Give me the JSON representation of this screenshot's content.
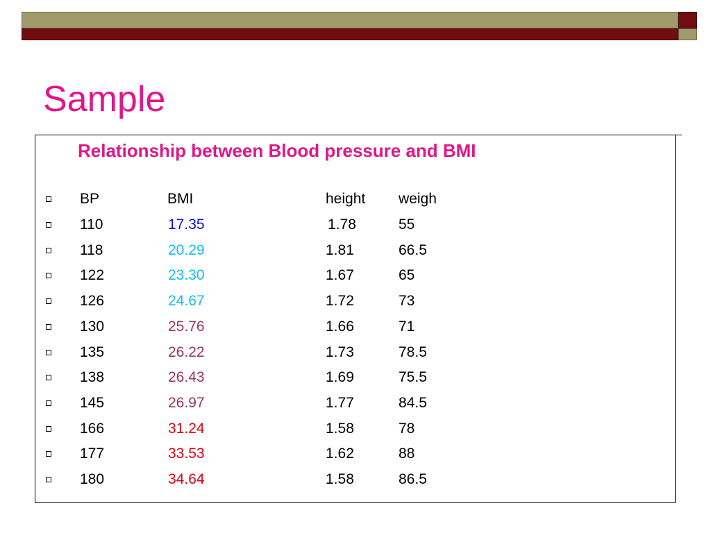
{
  "colors": {
    "title": "#e0168a",
    "bmi_low": "#0b10c8",
    "bmi_normal": "#10c0ee",
    "bmi_over": "#993366",
    "bmi_obese": "#e00010"
  },
  "title": "Sample",
  "subtitle": "Relationship between Blood pressure and BMI",
  "table": {
    "bullet_icon": "hollow-square-bullet",
    "headers": [
      "BP",
      "BMI",
      "height",
      "weigh"
    ],
    "rows": [
      {
        "bp": "110",
        "bmi": "17.35",
        "height": "1.78",
        "weight": "55",
        "bmi_color": "#0b10c8"
      },
      {
        "bp": "118",
        "bmi": "20.29",
        "height": "1.81",
        "weight": "66.5",
        "bmi_color": "#10c0ee"
      },
      {
        "bp": "122",
        "bmi": "23.30",
        "height": "1.67",
        "weight": "65",
        "bmi_color": "#10c0ee"
      },
      {
        "bp": "126",
        "bmi": "24.67",
        "height": "1.72",
        "weight": "73",
        "bmi_color": "#10c0ee"
      },
      {
        "bp": "130",
        "bmi": "25.76",
        "height": "1.66",
        "weight": "71",
        "bmi_color": "#993366"
      },
      {
        "bp": "135",
        "bmi": "26.22",
        "height": "1.73",
        "weight": "78.5",
        "bmi_color": "#993366"
      },
      {
        "bp": "138",
        "bmi": "26.43",
        "height": "1.69",
        "weight": "75.5",
        "bmi_color": "#993366"
      },
      {
        "bp": "145",
        "bmi": "26.97",
        "height": "1.77",
        "weight": "84.5",
        "bmi_color": "#993366"
      },
      {
        "bp": "166",
        "bmi": "31.24",
        "height": "1.58",
        "weight": "78",
        "bmi_color": "#e00010"
      },
      {
        "bp": "177",
        "bmi": "33.53",
        "height": "1.62",
        "weight": "88",
        "bmi_color": "#e00010"
      },
      {
        "bp": "180",
        "bmi": "34.64",
        "height": "1.58",
        "weight": "86.5",
        "bmi_color": "#e00010"
      }
    ]
  }
}
